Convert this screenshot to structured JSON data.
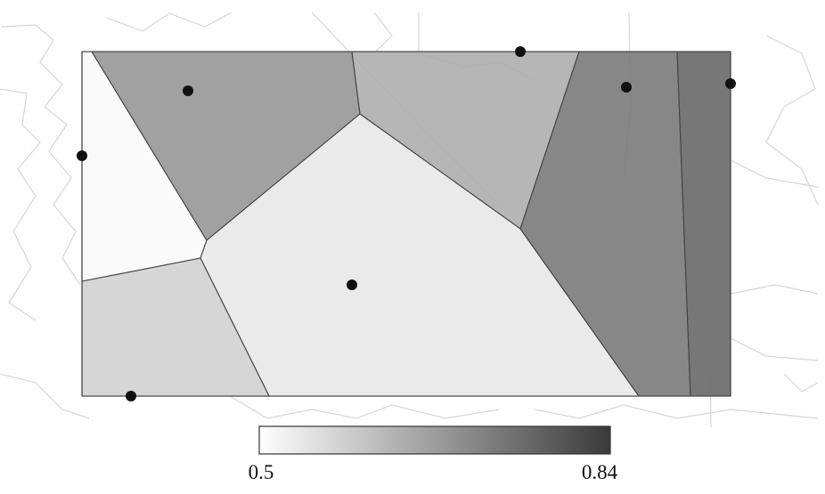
{
  "colorbar": {
    "min": 0.5,
    "max": 0.84,
    "ticks": [
      0.5,
      0.84
    ]
  },
  "regions": [
    {
      "value": 0.51
    },
    {
      "value": 0.68
    },
    {
      "value": 0.64
    },
    {
      "value": 0.54
    },
    {
      "value": 0.58
    },
    {
      "value": 0.73
    },
    {
      "value": 0.76
    }
  ]
}
